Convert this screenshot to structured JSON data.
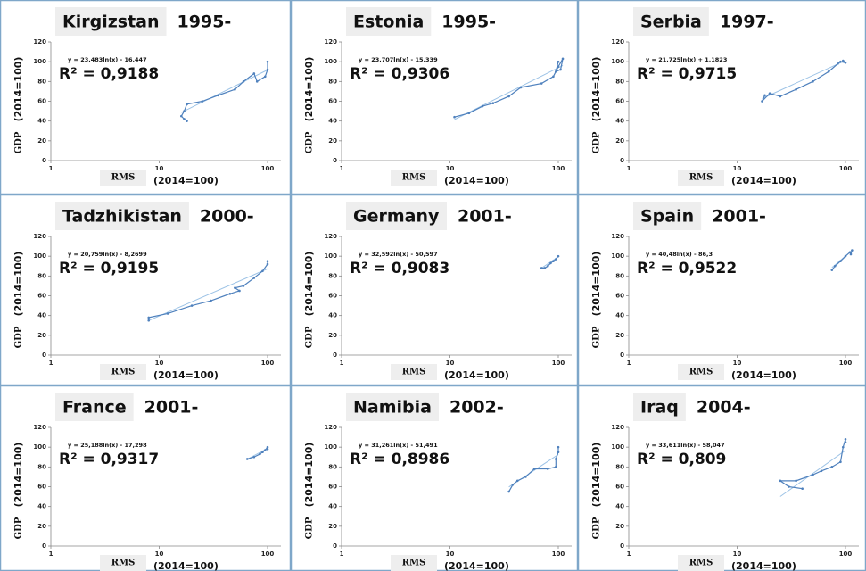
{
  "chart_data": [
    {
      "type": "line",
      "title": "Kirgizstan",
      "subtitle": "1995-",
      "equation": "y = 23,483ln(x) - 16,447",
      "r2": "R² = 0,9188",
      "x_label": "RMS",
      "x_label_unit": "(2014=100)",
      "y_label": "GDP",
      "y_label_unit": "(2014=100)",
      "log_x": true,
      "xlim": [
        1,
        100
      ],
      "xticks": [
        1,
        10,
        100
      ],
      "ylim": [
        0,
        120
      ],
      "yticks": [
        0,
        20,
        40,
        60,
        80,
        100,
        120
      ],
      "series": [
        {
          "color": "#4f81bd",
          "x": [
            18,
            17,
            16,
            17,
            18,
            25,
            35,
            50,
            60,
            75,
            80,
            95,
            100,
            100
          ],
          "values": [
            40,
            42,
            45,
            50,
            57,
            60,
            66,
            72,
            80,
            88,
            80,
            85,
            92,
            100
          ]
        }
      ],
      "trendline": {
        "color": "#9dc3e6",
        "x": [
          16,
          100
        ],
        "values": [
          48.7,
          91.7
        ]
      }
    },
    {
      "type": "line",
      "title": "Estonia",
      "subtitle": "1995-",
      "equation": "y = 23,707ln(x) - 15,339",
      "r2": "R² = 0,9306",
      "x_label": "RMS",
      "x_label_unit": "(2014=100)",
      "y_label": "GDP",
      "y_label_unit": "(2014=100)",
      "log_x": true,
      "xlim": [
        1,
        100
      ],
      "xticks": [
        1,
        10,
        100
      ],
      "ylim": [
        0,
        120
      ],
      "yticks": [
        0,
        20,
        40,
        60,
        80,
        100,
        120
      ],
      "series": [
        {
          "color": "#4f81bd",
          "x": [
            11,
            15,
            20,
            25,
            35,
            45,
            70,
            90,
            100,
            110,
            105,
            95,
            100
          ],
          "values": [
            44,
            48,
            55,
            58,
            65,
            74,
            78,
            85,
            95,
            103,
            92,
            90,
            100
          ]
        }
      ],
      "trendline": {
        "color": "#9dc3e6",
        "x": [
          11,
          110
        ],
        "values": [
          41.5,
          96.1
        ]
      }
    },
    {
      "type": "line",
      "title": "Serbia",
      "subtitle": "1997-",
      "equation": "y = 21,725ln(x) + 1,1823",
      "r2": "R² = 0,9715",
      "x_label": "RMS",
      "x_label_unit": "(2014=100)",
      "y_label": "GDP",
      "y_label_unit": "(2014=100)",
      "log_x": true,
      "xlim": [
        1,
        100
      ],
      "xticks": [
        1,
        10,
        100
      ],
      "ylim": [
        0,
        120
      ],
      "yticks": [
        0,
        20,
        40,
        60,
        80,
        100,
        120
      ],
      "series": [
        {
          "color": "#4f81bd",
          "x": [
            18,
            17,
            20,
            25,
            35,
            50,
            70,
            85,
            90,
            100,
            95
          ],
          "values": [
            66,
            60,
            68,
            65,
            72,
            80,
            90,
            98,
            100,
            99,
            101
          ]
        }
      ],
      "trendline": {
        "color": "#9dc3e6",
        "x": [
          17,
          100
        ],
        "values": [
          62.7,
          101.2
        ]
      }
    },
    {
      "type": "line",
      "title": "Tadzhikistan",
      "subtitle": "2000-",
      "equation": "y = 20,759ln(x) - 8,2699",
      "r2": "R² = 0,9195",
      "x_label": "RMS",
      "x_label_unit": "(2014=100)",
      "y_label": "GDP",
      "y_label_unit": "(2014=100)",
      "log_x": true,
      "xlim": [
        1,
        100
      ],
      "xticks": [
        1,
        10,
        100
      ],
      "ylim": [
        0,
        120
      ],
      "yticks": [
        0,
        20,
        40,
        60,
        80,
        100,
        120
      ],
      "series": [
        {
          "color": "#4f81bd",
          "x": [
            8,
            8,
            12,
            20,
            30,
            45,
            55,
            50,
            60,
            75,
            90,
            100,
            100
          ],
          "values": [
            35,
            38,
            42,
            50,
            55,
            62,
            65,
            68,
            70,
            78,
            85,
            92,
            95
          ]
        }
      ],
      "trendline": {
        "color": "#9dc3e6",
        "x": [
          8,
          100
        ],
        "values": [
          34.9,
          87.3
        ]
      }
    },
    {
      "type": "line",
      "title": "Germany",
      "subtitle": "2001-",
      "equation": "y = 32,592ln(x) - 50,597",
      "r2": "R² = 0,9083",
      "x_label": "RMS",
      "x_label_unit": "(2014=100)",
      "y_label": "GDP",
      "y_label_unit": "(2014=100)",
      "log_x": true,
      "xlim": [
        1,
        100
      ],
      "xticks": [
        1,
        10,
        100
      ],
      "ylim": [
        0,
        120
      ],
      "yticks": [
        0,
        20,
        40,
        60,
        80,
        100,
        120
      ],
      "series": [
        {
          "color": "#4f81bd",
          "x": [
            70,
            75,
            80,
            85,
            90,
            95,
            100
          ],
          "values": [
            88,
            88,
            90,
            93,
            95,
            97,
            100
          ]
        }
      ],
      "trendline": {
        "color": "#9dc3e6",
        "x": [
          70,
          100
        ],
        "values": [
          87.9,
          99.5
        ]
      }
    },
    {
      "type": "line",
      "title": "Spain",
      "subtitle": "2001-",
      "equation": "y = 40,48ln(x) - 86,3",
      "r2": "R² = 0,9522",
      "x_label": "RMS",
      "x_label_unit": "(2014=100)",
      "y_label": "GDP",
      "y_label_unit": "(2014=100)",
      "log_x": true,
      "xlim": [
        1,
        100
      ],
      "xticks": [
        1,
        10,
        100
      ],
      "ylim": [
        0,
        120
      ],
      "yticks": [
        0,
        20,
        40,
        60,
        80,
        100,
        120
      ],
      "series": [
        {
          "color": "#4f81bd",
          "x": [
            75,
            80,
            90,
            100,
            110,
            112,
            115
          ],
          "values": [
            86,
            90,
            95,
            100,
            104,
            102,
            106
          ]
        }
      ],
      "trendline": {
        "color": "#9dc3e6",
        "x": [
          75,
          115
        ],
        "values": [
          88.5,
          105.8
        ]
      }
    },
    {
      "type": "line",
      "title": "France",
      "subtitle": "2001-",
      "equation": "y = 25,188ln(x) - 17,298",
      "r2": "R² = 0,9317",
      "x_label": "RMS",
      "x_label_unit": "(2014=100)",
      "y_label": "GDP",
      "y_label_unit": "(2014=100)",
      "log_x": true,
      "xlim": [
        1,
        100
      ],
      "xticks": [
        1,
        10,
        100
      ],
      "ylim": [
        0,
        120
      ],
      "yticks": [
        0,
        20,
        40,
        60,
        80,
        100,
        120
      ],
      "series": [
        {
          "color": "#4f81bd",
          "x": [
            65,
            75,
            85,
            90,
            95,
            100,
            100
          ],
          "values": [
            88,
            90,
            93,
            95,
            97,
            100,
            98
          ]
        }
      ],
      "trendline": {
        "color": "#9dc3e6",
        "x": [
          65,
          100
        ],
        "values": [
          87.8,
          98.7
        ]
      }
    },
    {
      "type": "line",
      "title": "Namibia",
      "subtitle": "2002-",
      "equation": "y = 31,261ln(x) - 51,491",
      "r2": "R² = 0,8986",
      "x_label": "RMS",
      "x_label_unit": "(2014=100)",
      "y_label": "GDP",
      "y_label_unit": "(2014=100)",
      "log_x": true,
      "xlim": [
        1,
        100
      ],
      "xticks": [
        1,
        10,
        100
      ],
      "ylim": [
        0,
        120
      ],
      "yticks": [
        0,
        20,
        40,
        60,
        80,
        100,
        120
      ],
      "series": [
        {
          "color": "#4f81bd",
          "x": [
            35,
            38,
            42,
            50,
            60,
            80,
            95,
            95,
            100,
            100
          ],
          "values": [
            55,
            62,
            66,
            70,
            78,
            78,
            80,
            88,
            95,
            100
          ]
        }
      ],
      "trendline": {
        "color": "#9dc3e6",
        "x": [
          35,
          100
        ],
        "values": [
          59.7,
          92.5
        ]
      }
    },
    {
      "type": "line",
      "title": "Iraq",
      "subtitle": "2004-",
      "equation": "y = 33,611ln(x) - 58,047",
      "r2": "R² = 0,809",
      "x_label": "RMS",
      "x_label_unit": "(2014=100)",
      "y_label": "GDP",
      "y_label_unit": "(2014=100)",
      "log_x": true,
      "xlim": [
        1,
        100
      ],
      "xticks": [
        1,
        10,
        100
      ],
      "ylim": [
        0,
        120
      ],
      "yticks": [
        0,
        20,
        40,
        60,
        80,
        100,
        120
      ],
      "series": [
        {
          "color": "#4f81bd",
          "x": [
            40,
            30,
            25,
            35,
            50,
            60,
            75,
            90,
            95,
            100,
            100
          ],
          "values": [
            58,
            60,
            66,
            66,
            72,
            76,
            80,
            85,
            100,
            108,
            105
          ]
        }
      ],
      "trendline": {
        "color": "#9dc3e6",
        "x": [
          25,
          100
        ],
        "values": [
          50.1,
          96.7
        ]
      }
    }
  ]
}
